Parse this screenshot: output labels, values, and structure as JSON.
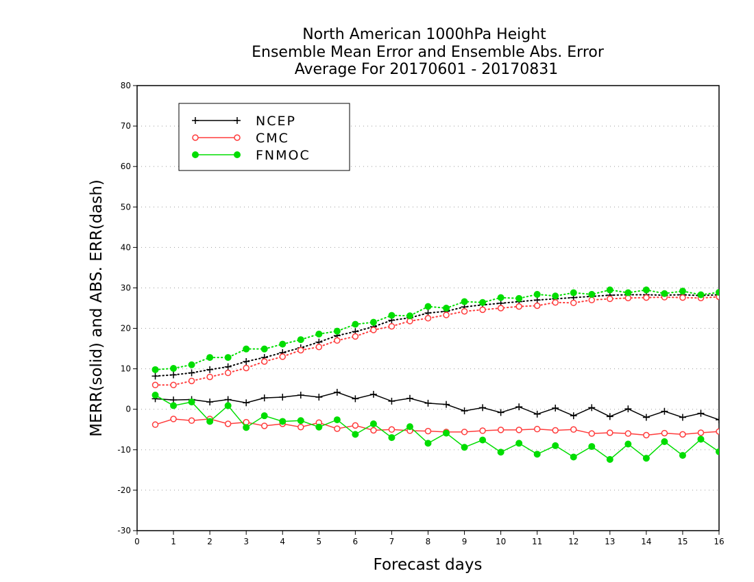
{
  "chart_data": {
    "type": "line",
    "title_lines": [
      "North American 1000hPa Height",
      "Ensemble Mean Error and Ensemble Abs. Error",
      "Average For 20170601 - 20170831"
    ],
    "xlabel": "Forecast days",
    "ylabel": "MERR(solid) and ABS. ERR(dash)",
    "xlim": [
      0,
      16
    ],
    "ylim": [
      -30,
      80
    ],
    "x_ticks": [
      "0",
      "1",
      "2",
      "3",
      "4",
      "5",
      "6",
      "7",
      "8",
      "9",
      "10",
      "11",
      "12",
      "13",
      "14",
      "15",
      "16"
    ],
    "y_ticks": [
      "-30",
      "-20",
      "-10",
      "0",
      "10",
      "20",
      "30",
      "40",
      "50",
      "60",
      "70",
      "80"
    ],
    "grid": "horizontal dotted",
    "legend_position": "top-left",
    "x": [
      0.5,
      1,
      1.5,
      2,
      2.5,
      3,
      3.5,
      4,
      4.5,
      5,
      5.5,
      6,
      6.5,
      7,
      7.5,
      8,
      8.5,
      9,
      9.5,
      10,
      10.5,
      11,
      11.5,
      12,
      12.5,
      13,
      13.5,
      14,
      14.5,
      15,
      15.5,
      16
    ],
    "series": [
      {
        "name": "NCEP",
        "color": "#000000",
        "marker": "plus",
        "merr": [
          2.6,
          2.3,
          2.4,
          1.8,
          2.4,
          1.6,
          2.8,
          3.0,
          3.5,
          3.0,
          4.2,
          2.6,
          3.7,
          2.0,
          2.7,
          1.5,
          1.2,
          -0.4,
          0.4,
          -0.8,
          0.6,
          -1.2,
          0.3,
          -1.6,
          0.4,
          -1.8,
          0.1,
          -2.0,
          -0.5,
          -2.0,
          -1.0,
          -2.6
        ],
        "abs_err": [
          8.2,
          8.5,
          9.0,
          9.8,
          10.5,
          11.8,
          12.8,
          14.0,
          15.2,
          16.6,
          18.2,
          19.2,
          20.4,
          22.0,
          22.6,
          23.8,
          24.2,
          25.3,
          25.8,
          26.2,
          26.6,
          27.0,
          27.3,
          27.6,
          27.9,
          28.2,
          28.3,
          28.3,
          28.2,
          28.3,
          28.1,
          28.3
        ]
      },
      {
        "name": "CMC",
        "color": "#ff3b3b",
        "marker": "open-circle",
        "merr": [
          -3.8,
          -2.4,
          -2.8,
          -2.4,
          -3.6,
          -3.2,
          -4.1,
          -3.6,
          -4.4,
          -3.3,
          -4.8,
          -4.0,
          -5.2,
          -5.0,
          -5.3,
          -5.4,
          -5.6,
          -5.6,
          -5.3,
          -5.1,
          -5.1,
          -4.9,
          -5.2,
          -5.0,
          -6.0,
          -5.8,
          -6.0,
          -6.4,
          -5.9,
          -6.2,
          -5.8,
          -5.5
        ],
        "abs_err": [
          6.0,
          6.0,
          7.0,
          8.0,
          9.0,
          10.2,
          11.8,
          13.0,
          14.6,
          15.4,
          17.0,
          18.0,
          19.6,
          20.5,
          21.8,
          22.5,
          23.3,
          24.2,
          24.6,
          25.0,
          25.4,
          25.6,
          26.4,
          26.3,
          27.0,
          27.3,
          27.5,
          27.6,
          27.7,
          27.6,
          27.5,
          27.8
        ]
      },
      {
        "name": "FNMOC",
        "color": "#00dd00",
        "marker": "filled-circle",
        "merr": [
          3.5,
          0.9,
          1.8,
          -3.0,
          0.9,
          -4.5,
          -1.6,
          -3.0,
          -2.8,
          -4.4,
          -2.6,
          -6.2,
          -3.6,
          -7.0,
          -4.3,
          -8.4,
          -5.9,
          -9.4,
          -7.6,
          -10.6,
          -8.4,
          -11.1,
          -9.0,
          -11.8,
          -9.2,
          -12.4,
          -8.6,
          -12.1,
          -8.0,
          -11.4,
          -7.4,
          -10.5
        ],
        "abs_err": [
          9.8,
          10.1,
          11.0,
          12.8,
          12.8,
          14.9,
          14.9,
          16.1,
          17.2,
          18.6,
          19.3,
          21.0,
          21.5,
          23.2,
          23.1,
          25.4,
          25.0,
          26.6,
          26.4,
          27.6,
          27.4,
          28.4,
          28.0,
          28.8,
          28.4,
          29.5,
          28.8,
          29.5,
          28.6,
          29.2,
          28.3,
          28.9
        ]
      }
    ]
  }
}
